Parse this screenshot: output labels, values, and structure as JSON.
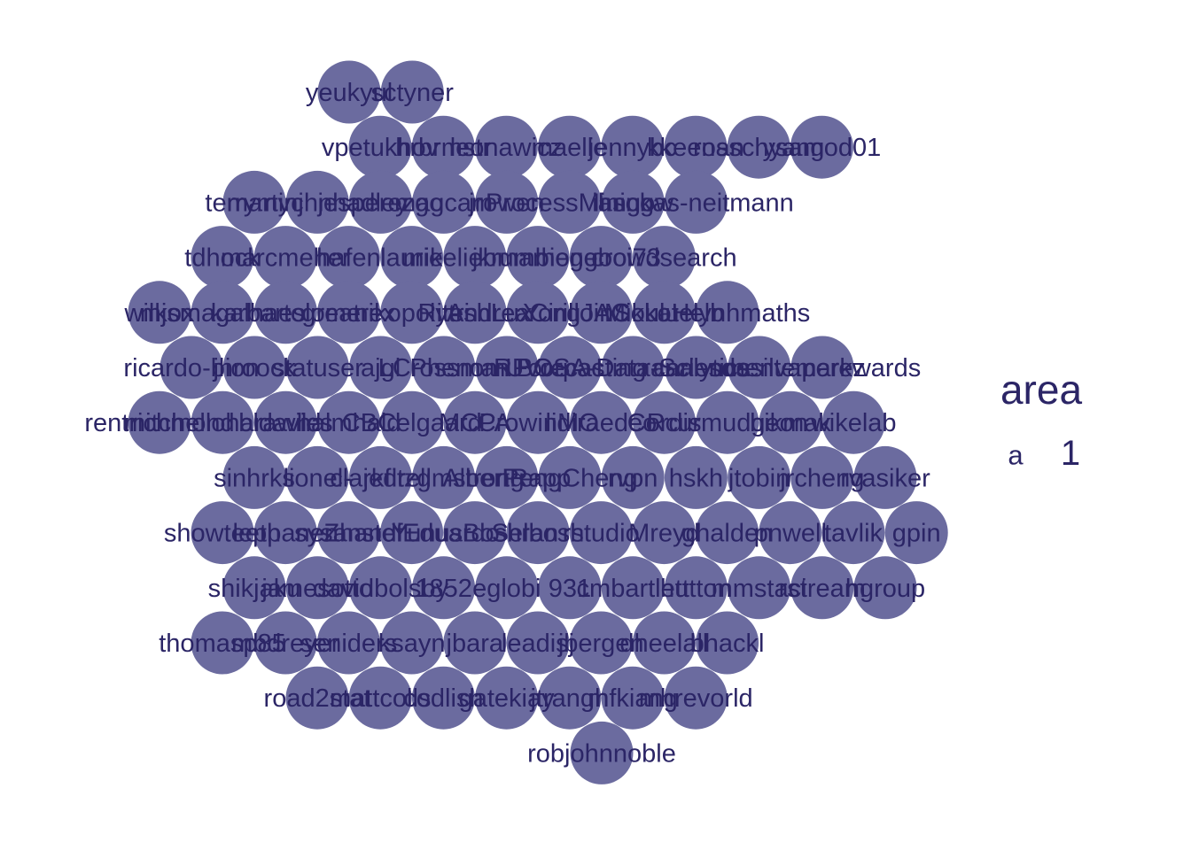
{
  "chart_data": {
    "type": "bubble",
    "legend": {
      "title": "area",
      "key_symbol": "a",
      "value": "1",
      "position": "right"
    },
    "colors": {
      "bubble": "#6b6b9f",
      "text": "#2b2566"
    },
    "area": 1,
    "rows": [
      [
        "yeukyul",
        "sctyner"
      ],
      [
        "vpetukhov",
        "hrbrmstr",
        "leonawicz",
        "maelle",
        "jennybc",
        "kkeenan",
        "rosschyang",
        "ysamod01"
      ],
      [
        "terrymyc",
        "martinjhnhadley",
        "jesperezgo",
        "magcam",
        "jrowen",
        "ProcessMining",
        "iangow",
        "hsokas-neitmann"
      ],
      [
        "tdhock",
        "marcmeher",
        "hafen",
        "laurie",
        "mikeliebman",
        "jkrumbiegel",
        "hongooi73",
        "crowdsearch"
      ],
      [
        "wilkox",
        "mjsmagalhaes",
        "karbartolome",
        "greatrex",
        "nikopolytri",
        "RiteshLux",
        "AndreaCirilloAC",
        "YongJinSoulu",
        "MikkoHelb",
        "katelynhmaths"
      ],
      [
        "ricardo-bion",
        "jhroock",
        "statuser",
        "ajgl",
        "LCrossman",
        "PhenomUVorpac",
        "RForecasting",
        "BOSA-Data-Science",
        "ranalytics",
        "carlosdasilvaperez",
        "mentemarkwards"
      ],
      [
        "rentrichmond",
        "mitchelloharawild",
        "bldavies",
        "halmhald",
        "CBCelgaard",
        "MCPA",
        "CrowinMO",
        "lidiraedeo",
        "Cordis",
        "Rcurmudgeon",
        "bikmak",
        "wikelab"
      ],
      [
        "sinhrks",
        "lionel-",
        "clarkfitzg",
        "jedrellmstrong",
        "AlbertRapp",
        "PengCheng",
        "rvpn",
        "hskh",
        "jtobin",
        "jrcheng",
        "rvasiker"
      ],
      [
        "showteeth",
        "leppanen",
        "sysanstef",
        "ZhandiEduardo",
        "YunusBoshran",
        "Selbosh",
        "rstudio",
        "Mreyd",
        "ghalden",
        "pnwell",
        "tavlik",
        "gpin"
      ],
      [
        "shikjaku",
        "jamesotto",
        "davidbolsby",
        "1852",
        "eglobi",
        "931",
        "cmbartlett",
        "hutton",
        "mmstaci",
        "rstream",
        "hgroup"
      ],
      [
        "thomasp85",
        "mbdreyer",
        "seniders",
        "ksayn",
        "jbara",
        "leadisj",
        "jbergen",
        "dheelall",
        "bhackl"
      ],
      [
        "road2stat",
        "mattcolls",
        "codlish",
        "gatekiay",
        "jtrangh",
        "mfkiang",
        "mhrevorld"
      ],
      [
        "robjohnnoble"
      ]
    ],
    "labels": [
      "yeukyul",
      "sctyner",
      "vpetukhov",
      "hrbrmstr",
      "leonawicz",
      "maelle",
      "jennybc",
      "kkeenan",
      "rosschyang",
      "ysamod01",
      "terrymyc",
      "martinjhnhadley",
      "jesperezgo",
      "magcam",
      "jrowen",
      "ProcessMining",
      "iangow",
      "hsokas-neitmann",
      "tdhock",
      "marcmeher",
      "hafen",
      "laurie",
      "mikeliebman",
      "jkrumbiegel",
      "hongooi73",
      "crowdsearch",
      "wilkox",
      "mjsmagalhaes",
      "karbartolome",
      "greatrex",
      "nikopolytri",
      "RiteshLux",
      "AndreaCirilloAC",
      "YongJinSoulu",
      "MikkoHelb",
      "katelynhmaths",
      "ricardo-bion",
      "jhroock",
      "statuser",
      "ajgl",
      "LCrossman",
      "PhenomUVorpac",
      "RForecasting",
      "BOSA-Data-Science",
      "ranalytics",
      "carlosdasilvaperez",
      "mentemarkwards",
      "rentrichmond",
      "mitchelloharawild",
      "bldavies",
      "halmhald",
      "CBCelgaard",
      "MCPA",
      "CrowinMO",
      "lidiraedeo",
      "Cordis",
      "Rcurmudgeon",
      "bikmak",
      "wikelab",
      "sinhrks",
      "lionel-",
      "clarkfitzg",
      "jedrellmstrong",
      "AlbertRapp",
      "PengCheng",
      "rvpn",
      "hskh",
      "jtobin",
      "jrcheng",
      "rvasiker",
      "showteeth",
      "leppanen",
      "sysanstef",
      "ZhandiEduardo",
      "YunusBoshran",
      "Selbosh",
      "rstudio",
      "Mreyd",
      "ghalden",
      "pnwell",
      "tavlik",
      "gpin",
      "shikjaku",
      "jamesotto",
      "davidbolsby",
      "1852",
      "eglobi",
      "931",
      "cmbartlett",
      "hutton",
      "mmstaci",
      "rstream",
      "hgroup",
      "thomasp85",
      "mbdreyer",
      "seniders",
      "ksayn",
      "jbara",
      "leadisj",
      "jbergen",
      "dheelall",
      "bhackl",
      "road2stat",
      "mattcolls",
      "codlish",
      "gatekiay",
      "jtrangh",
      "mfkiang",
      "mhrevorld",
      "robjohnnoble"
    ]
  }
}
